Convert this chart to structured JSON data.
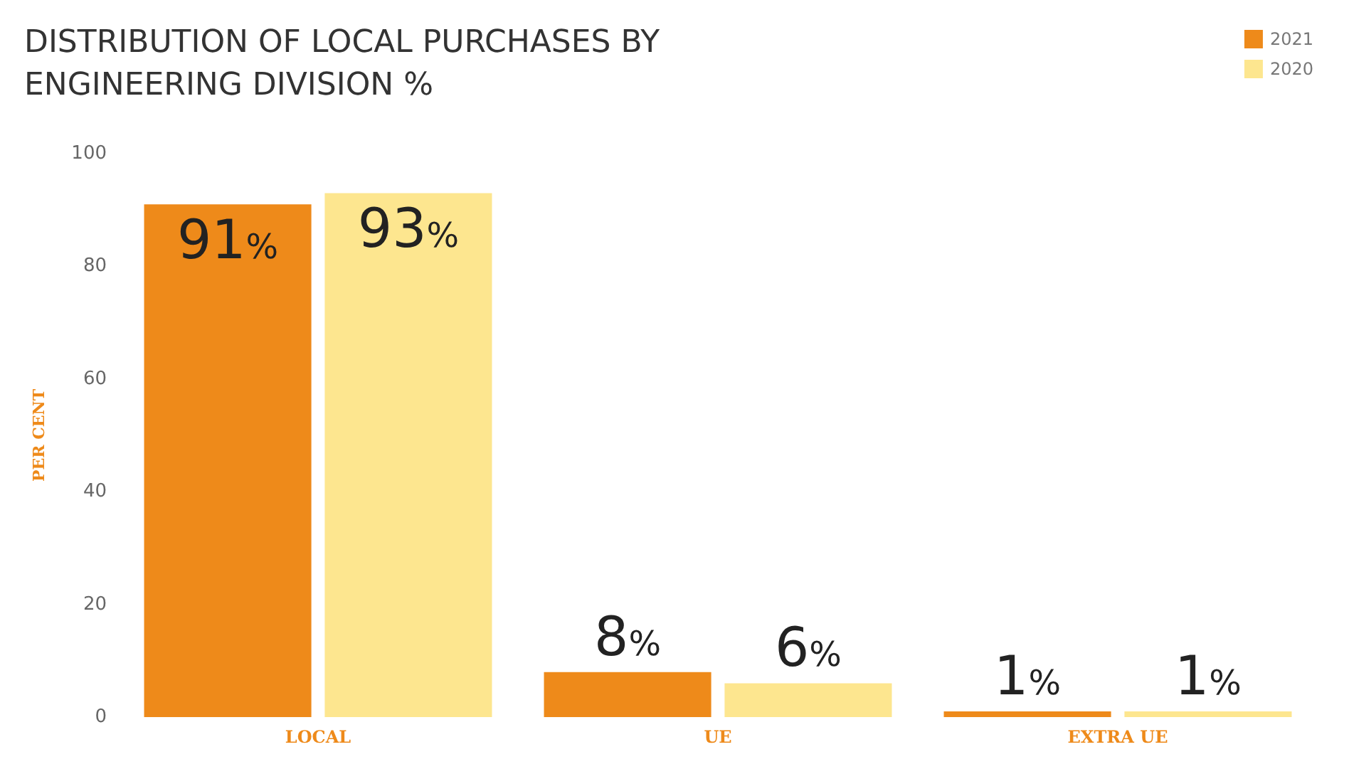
{
  "chart_data": {
    "type": "bar",
    "title": "DISTRIBUTION OF LOCAL PURCHASES BY ENGINEERING DIVISION %",
    "ylabel": "PER CENT",
    "categories": [
      "LOCAL",
      "UE",
      "EXTRA UE"
    ],
    "series": [
      {
        "name": "2021",
        "color": "#ee8a1a",
        "values": [
          91,
          8,
          1
        ],
        "value_labels": [
          "91%",
          "8%",
          "1%"
        ]
      },
      {
        "name": "2020",
        "color": "#fde68f",
        "values": [
          93,
          6,
          1
        ],
        "value_labels": [
          "93%",
          "6%",
          "1%"
        ]
      }
    ],
    "ylim": [
      0,
      100
    ],
    "yticks": [
      0,
      20,
      40,
      60,
      80,
      100
    ],
    "grid": false,
    "legend": "top right"
  }
}
